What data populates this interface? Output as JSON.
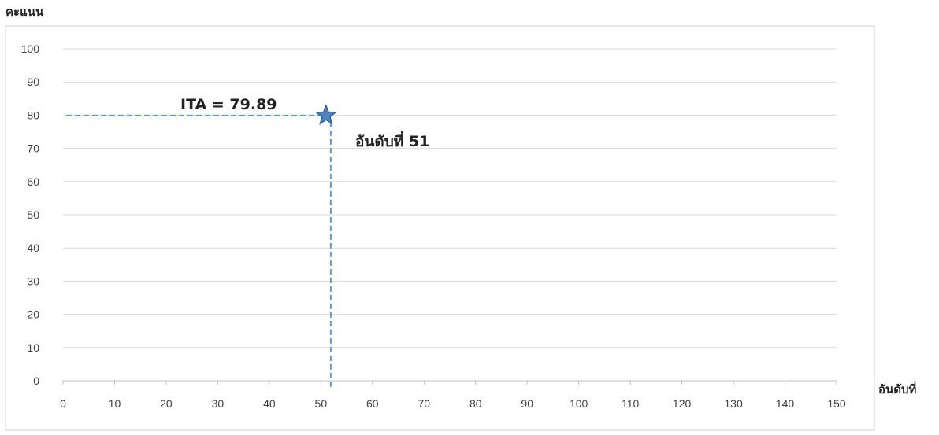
{
  "chart_data": {
    "type": "scatter",
    "ylabel": "คะแนน",
    "xlabel": "อันดับที่",
    "xlim": [
      0,
      150
    ],
    "ylim": [
      0,
      100
    ],
    "x_ticks": [
      0,
      10,
      20,
      30,
      40,
      50,
      60,
      70,
      80,
      90,
      100,
      110,
      120,
      130,
      140,
      150
    ],
    "y_ticks": [
      0,
      10,
      20,
      30,
      40,
      50,
      60,
      70,
      80,
      90,
      100
    ],
    "grid": "horizontal",
    "point": {
      "x": 51,
      "y": 79.89,
      "marker": "star"
    },
    "guide_lines": "dashed",
    "annotations": {
      "value_label": "ITA = 79.89",
      "rank_label": "อันดับที่ 51"
    },
    "colors": {
      "marker_fill": "#4f81bd",
      "marker_edge": "#2e5c8a",
      "guide": "#5b9bd5",
      "grid": "#d9d9d9",
      "frame": "#d0d0d0"
    }
  }
}
